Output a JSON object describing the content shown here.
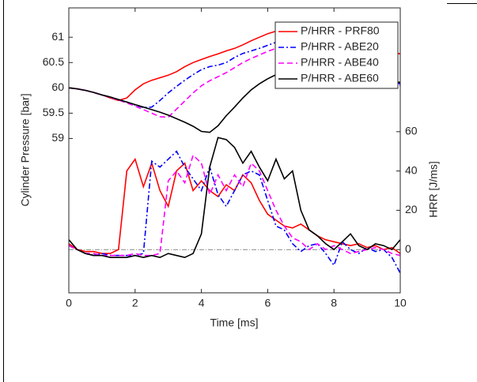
{
  "chart_data": {
    "type": "line",
    "x_label": "Time [ms]",
    "y_label": "Cylinder Pressure [bar]",
    "y2_label": "HRR [J/ms]",
    "x": [
      0,
      0.25,
      0.5,
      0.75,
      1,
      1.25,
      1.5,
      1.75,
      2,
      2.25,
      2.5,
      2.75,
      3,
      3.25,
      3.5,
      3.75,
      4,
      4.25,
      4.5,
      4.75,
      5,
      5.25,
      5.5,
      5.75,
      6,
      6.25,
      6.5,
      6.75,
      7,
      7.25,
      7.5,
      7.75,
      8,
      8.25,
      8.5,
      8.75,
      9,
      9.25,
      9.5,
      9.75,
      10
    ],
    "xlim": [
      0,
      10
    ],
    "xticks": [
      0,
      2,
      4,
      6,
      8,
      10
    ],
    "ylim": [
      55.95,
      61.58
    ],
    "yticks": [
      59,
      59.5,
      60,
      60.5,
      61
    ],
    "y2lim": [
      -22,
      123
    ],
    "y2ticks": [
      0,
      20,
      40,
      60
    ],
    "y2_zero_line": true,
    "legend": "upper right",
    "series": [
      {
        "name": "P/HRR - PRF80",
        "color": "#ff0000",
        "dash": "solid",
        "axis": "y",
        "values": [
          60,
          59.98,
          59.95,
          59.91,
          59.86,
          59.8,
          59.75,
          59.8,
          59.96,
          60.08,
          60.15,
          60.2,
          60.25,
          60.32,
          60.42,
          60.5,
          60.56,
          60.62,
          60.67,
          60.73,
          60.78,
          60.85,
          60.93,
          61.0,
          61.07,
          61.12,
          61.15,
          61.14,
          61.12,
          61.1,
          61.07,
          61.03,
          60.99,
          60.95,
          60.91,
          60.87,
          60.83,
          60.79,
          60.75,
          60.71,
          60.67
        ]
      },
      {
        "name": "P/HRR - ABE20",
        "color": "#0000ff",
        "dash": "dashdot",
        "axis": "y",
        "values": [
          60,
          59.98,
          59.95,
          59.91,
          59.86,
          59.82,
          59.77,
          59.72,
          59.66,
          59.61,
          59.62,
          59.75,
          59.9,
          60.03,
          60.15,
          60.26,
          60.36,
          60.42,
          60.45,
          60.5,
          60.6,
          60.68,
          60.73,
          60.78,
          60.84,
          60.9,
          60.93,
          60.92,
          60.88,
          60.82,
          60.75,
          60.67,
          60.58,
          60.5,
          60.42,
          60.35,
          60.28,
          60.22,
          60.16,
          60.12,
          60.08
        ]
      },
      {
        "name": "P/HRR - ABE40",
        "color": "#ff00ff",
        "dash": "dashed",
        "axis": "y",
        "values": [
          60,
          59.98,
          59.95,
          59.91,
          59.86,
          59.81,
          59.76,
          59.7,
          59.64,
          59.57,
          59.5,
          59.43,
          59.42,
          59.58,
          59.74,
          59.9,
          60.04,
          60.14,
          60.22,
          60.3,
          60.4,
          60.5,
          60.58,
          60.65,
          60.72,
          60.78,
          60.82,
          60.84,
          60.83,
          60.8,
          60.74,
          60.66,
          60.58,
          60.5,
          60.42,
          60.34,
          60.26,
          60.2,
          60.14,
          60.09,
          60.05
        ]
      },
      {
        "name": "P/HRR - ABE60",
        "color": "#000000",
        "dash": "solid",
        "axis": "y",
        "values": [
          60,
          59.98,
          59.95,
          59.91,
          59.86,
          59.82,
          59.77,
          59.72,
          59.67,
          59.62,
          59.57,
          59.52,
          59.46,
          59.39,
          59.32,
          59.24,
          59.14,
          59.12,
          59.25,
          59.45,
          59.62,
          59.8,
          59.96,
          60.08,
          60.18,
          60.26,
          60.32,
          60.35,
          60.36,
          60.35,
          60.33,
          60.3,
          60.27,
          60.24,
          60.21,
          60.18,
          60.16,
          60.14,
          60.13,
          60.12,
          60.11
        ]
      },
      {
        "color": "#ff0000",
        "dash": "solid",
        "axis": "y2",
        "values": [
          3,
          0,
          -1,
          -1,
          -2,
          -2,
          0,
          40,
          46,
          32,
          44,
          30,
          22,
          40,
          44,
          30,
          35,
          30,
          27,
          33,
          30,
          38,
          34,
          25,
          18,
          15,
          12,
          11,
          13,
          10,
          7,
          5,
          4,
          3,
          2,
          3,
          1,
          2,
          0,
          1,
          -2
        ]
      },
      {
        "color": "#0000ff",
        "dash": "dashdot",
        "axis": "y2",
        "values": [
          2,
          0,
          -2,
          -3,
          -2,
          -3,
          -3,
          -3,
          -3,
          -2,
          45,
          42,
          46,
          50,
          42,
          36,
          30,
          42,
          28,
          22,
          30,
          38,
          40,
          38,
          25,
          12,
          10,
          3,
          -1,
          2,
          3,
          -2,
          -8,
          4,
          0,
          -2,
          1,
          -1,
          0,
          -4,
          -12
        ]
      },
      {
        "color": "#ff00ff",
        "dash": "dashed",
        "axis": "y2",
        "values": [
          2,
          0,
          -2,
          -2,
          -3,
          -3,
          -3,
          -3,
          -2,
          -3,
          -3,
          -2,
          35,
          40,
          34,
          48,
          44,
          28,
          38,
          30,
          38,
          32,
          44,
          40,
          30,
          20,
          12,
          6,
          4,
          0,
          3,
          0,
          2,
          0,
          -2,
          -1,
          0,
          1,
          0,
          -2,
          -3
        ]
      },
      {
        "color": "#000000",
        "dash": "solid",
        "axis": "y2",
        "values": [
          5,
          0,
          -2,
          -3,
          -3,
          -4,
          -4,
          -4,
          -3,
          -4,
          -3,
          -4,
          -2,
          -3,
          -4,
          -2,
          8,
          42,
          57,
          56,
          52,
          44,
          50,
          42,
          35,
          46,
          36,
          40,
          20,
          10,
          7,
          3,
          0,
          4,
          8,
          2,
          0,
          3,
          2,
          0,
          5
        ]
      }
    ]
  }
}
